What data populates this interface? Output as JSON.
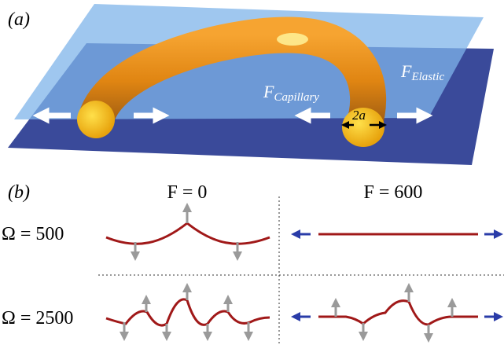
{
  "panel_a": {
    "label": "(a)",
    "capillary": {
      "symbol": "F",
      "subscript": "Capillary"
    },
    "elastic": {
      "symbol": "F",
      "subscript": "Elastic"
    },
    "diameter": "2a"
  },
  "panel_b": {
    "label": "(b)",
    "columns": [
      "F = 0",
      "F = 600"
    ],
    "rows": [
      "Ω = 500",
      "Ω = 2500"
    ]
  }
}
